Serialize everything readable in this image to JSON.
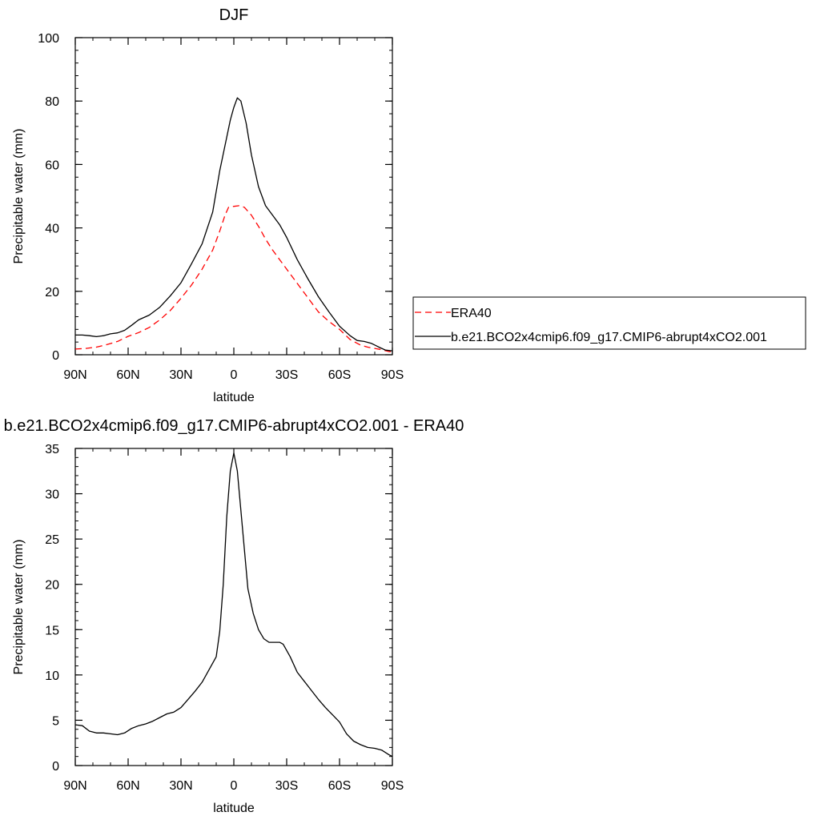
{
  "chart_data": [
    {
      "type": "line",
      "title": "DJF",
      "xlabel": "latitude",
      "ylabel": "Precipitable water (mm)",
      "xlim": [
        90,
        -90
      ],
      "ylim": [
        0,
        100
      ],
      "x_ticks": [
        {
          "value": 90,
          "label": "90N"
        },
        {
          "value": 60,
          "label": "60N"
        },
        {
          "value": 30,
          "label": "30N"
        },
        {
          "value": 0,
          "label": "0"
        },
        {
          "value": -30,
          "label": "30S"
        },
        {
          "value": -60,
          "label": "60S"
        },
        {
          "value": -90,
          "label": "90S"
        }
      ],
      "y_ticks": [
        0,
        20,
        40,
        60,
        80,
        100
      ],
      "y_minor_step": 4,
      "legend_position": "right",
      "series": [
        {
          "name": "ERA40",
          "color": "#ff0000",
          "dash": "dashed",
          "x": [
            90,
            84,
            78,
            72,
            66,
            60,
            54,
            48,
            42,
            36,
            30,
            24,
            18,
            12,
            8,
            5,
            3,
            0,
            -3,
            -6,
            -10,
            -14,
            -18,
            -22,
            -26,
            -30,
            -36,
            -42,
            -48,
            -54,
            -60,
            -66,
            -72,
            -76,
            -80,
            -84,
            -88,
            -90
          ],
          "y": [
            1.8,
            2.0,
            2.4,
            3.2,
            4.2,
            5.8,
            7.0,
            8.6,
            11.0,
            14.0,
            17.8,
            22.0,
            27.0,
            33.0,
            39.0,
            44.0,
            46.5,
            46.8,
            47.0,
            46.5,
            44.0,
            40.5,
            36.5,
            33.0,
            30.0,
            27.0,
            22.5,
            18.0,
            13.5,
            10.5,
            8.0,
            4.8,
            3.0,
            2.4,
            2.0,
            1.6,
            1.0,
            0.9
          ]
        },
        {
          "name": "b.e21.BCO2x4cmip6.f09_g17.CMIP6-abrupt4xCO2.001",
          "color": "#000000",
          "dash": "solid",
          "x": [
            90,
            86,
            82,
            78,
            74,
            70,
            66,
            62,
            58,
            54,
            48,
            42,
            36,
            30,
            24,
            18,
            12,
            8,
            5,
            2,
            0,
            -2,
            -4,
            -7,
            -10,
            -14,
            -18,
            -22,
            -26,
            -30,
            -36,
            -42,
            -48,
            -54,
            -60,
            -66,
            -70,
            -74,
            -78,
            -82,
            -86,
            -90
          ],
          "y": [
            6.2,
            6.2,
            6.0,
            5.7,
            6.0,
            6.6,
            6.9,
            7.7,
            9.3,
            11.0,
            12.5,
            15.0,
            18.6,
            22.7,
            28.7,
            35.0,
            45.0,
            58.0,
            66.0,
            74.0,
            78.0,
            81.0,
            80.0,
            73.0,
            63.0,
            53.0,
            47.0,
            44.0,
            41.0,
            37.0,
            30.0,
            24.0,
            18.3,
            13.5,
            9.0,
            6.0,
            4.5,
            4.2,
            3.6,
            2.5,
            1.5,
            1.2
          ]
        }
      ]
    },
    {
      "type": "line",
      "title": "b.e21.BCO2x4cmip6.f09_g17.CMIP6-abrupt4xCO2.001 - ERA40",
      "xlabel": "latitude",
      "ylabel": "Precipitable water (mm)",
      "xlim": [
        90,
        -90
      ],
      "ylim": [
        0,
        35
      ],
      "x_ticks": [
        {
          "value": 90,
          "label": "90N"
        },
        {
          "value": 60,
          "label": "60N"
        },
        {
          "value": 30,
          "label": "30N"
        },
        {
          "value": 0,
          "label": "0"
        },
        {
          "value": -30,
          "label": "30S"
        },
        {
          "value": -60,
          "label": "60S"
        },
        {
          "value": -90,
          "label": "90S"
        }
      ],
      "y_ticks": [
        0,
        5,
        10,
        15,
        20,
        25,
        30,
        35
      ],
      "y_minor_step": 1,
      "series": [
        {
          "color": "#000000",
          "dash": "solid",
          "x": [
            90,
            86,
            82,
            78,
            74,
            70,
            66,
            62,
            58,
            54,
            50,
            46,
            42,
            38,
            34,
            30,
            26,
            22,
            18,
            14,
            10,
            8,
            6,
            4,
            2,
            0,
            -2,
            -5,
            -8,
            -11,
            -14,
            -17,
            -20,
            -23,
            -26,
            -28,
            -32,
            -36,
            -40,
            -44,
            -48,
            -52,
            -56,
            -60,
            -64,
            -68,
            -72,
            -76,
            -80,
            -84,
            -88,
            -90
          ],
          "y": [
            4.5,
            4.4,
            3.8,
            3.6,
            3.6,
            3.5,
            3.4,
            3.6,
            4.1,
            4.4,
            4.6,
            4.9,
            5.3,
            5.7,
            5.9,
            6.4,
            7.3,
            8.2,
            9.2,
            10.6,
            12.0,
            14.8,
            20.0,
            27.5,
            32.5,
            34.5,
            32.5,
            26.0,
            19.5,
            16.8,
            15.0,
            14.0,
            13.6,
            13.6,
            13.6,
            13.4,
            12.0,
            10.3,
            9.3,
            8.3,
            7.3,
            6.4,
            5.6,
            4.8,
            3.5,
            2.7,
            2.3,
            2.0,
            1.9,
            1.7,
            1.2,
            1.0
          ]
        }
      ]
    }
  ]
}
